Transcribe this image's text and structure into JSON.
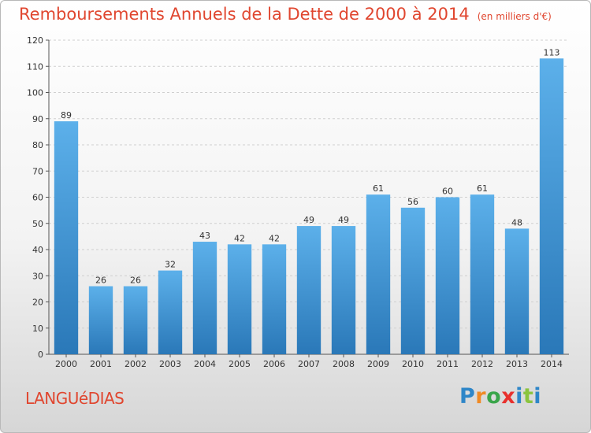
{
  "header": {
    "title": "Remboursements Annuels de la Dette de 2000 à 2014",
    "unit": "(en milliers d'€)"
  },
  "footer": {
    "commune": "LANGUéDIAS",
    "brand_letters": [
      "P",
      "r",
      "o",
      "x",
      "i",
      "t",
      "i"
    ]
  },
  "colors": {
    "title": "#e0462f",
    "bar_top": "#5cb0ea",
    "bar_bottom": "#2a78b8",
    "grid": "#cfcfcf",
    "brand": [
      "#2e86c8",
      "#f08a24",
      "#3aa54a",
      "#e8302d",
      "#2e86c8",
      "#8bc43f",
      "#2e86c8"
    ]
  },
  "chart_data": {
    "type": "bar",
    "title": "Remboursements Annuels de la Dette de 2000 à 2014",
    "xlabel": "",
    "ylabel": "",
    "categories": [
      "2000",
      "2001",
      "2002",
      "2003",
      "2004",
      "2005",
      "2006",
      "2007",
      "2008",
      "2009",
      "2010",
      "2011",
      "2012",
      "2013",
      "2014"
    ],
    "values": [
      89,
      26,
      26,
      32,
      43,
      42,
      42,
      49,
      49,
      61,
      56,
      60,
      61,
      48,
      113
    ],
    "ylim": [
      0,
      120
    ],
    "yticks": [
      0,
      10,
      20,
      30,
      40,
      50,
      60,
      70,
      80,
      90,
      100,
      110,
      120
    ],
    "grid": "horizontal dashed",
    "legend": "none",
    "data_labels": true
  }
}
